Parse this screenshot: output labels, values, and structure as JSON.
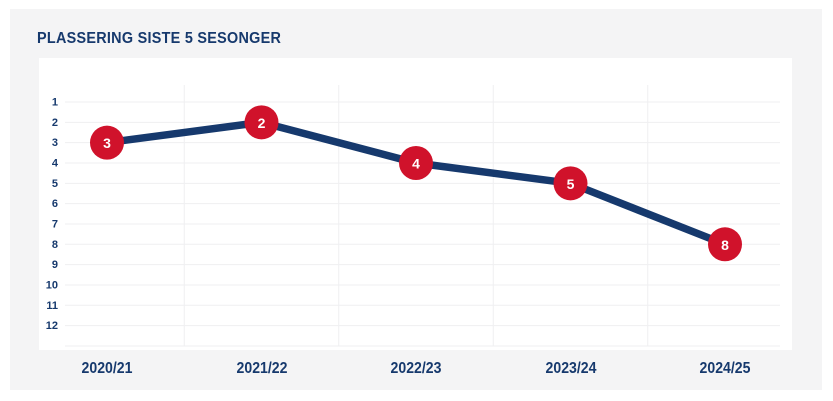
{
  "header": {
    "title": "PLASSERING SISTE 5 SESONGER"
  },
  "chart_data": {
    "type": "line",
    "title": "PLASSERING SISTE 5 SESONGER",
    "categories": [
      "2020/21",
      "2021/22",
      "2022/23",
      "2023/24",
      "2024/25"
    ],
    "series": [
      {
        "name": "Plassering",
        "values": [
          3,
          2,
          4,
          5,
          8
        ]
      }
    ],
    "point_labels": [
      "3",
      "2",
      "4",
      "5",
      "8"
    ],
    "y_axis": {
      "min": 1,
      "max": 12,
      "inverted": true,
      "tick_labels": [
        "1",
        "2",
        "3",
        "4",
        "5",
        "6",
        "7",
        "8",
        "9",
        "10",
        "11",
        "12"
      ]
    },
    "grid": "on",
    "legend": "none",
    "colors": {
      "line": "#16396d",
      "marker": "#d0122b",
      "marker_text": "#ffffff",
      "grid_line": "#efeff1",
      "text": "#16396d",
      "panel_background": "#f4f4f5",
      "plot_background": "#ffffff",
      "page_background": "#ffffff"
    }
  }
}
